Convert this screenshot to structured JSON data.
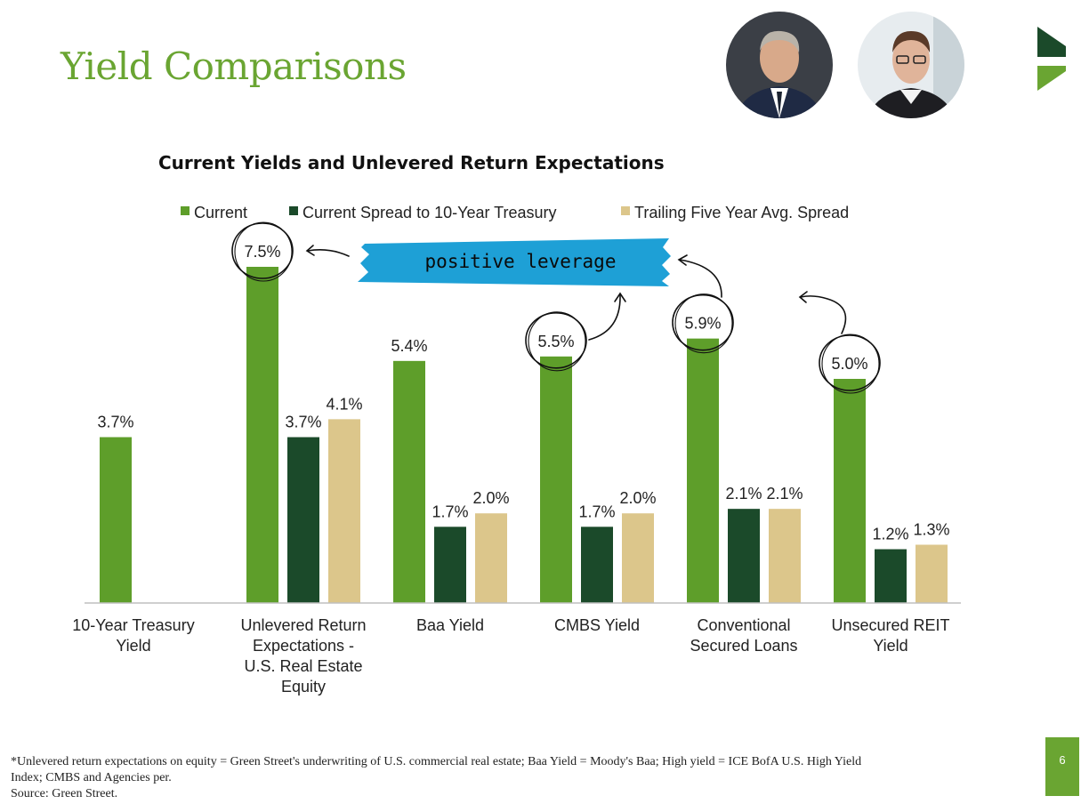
{
  "slide": {
    "title": "Yield Comparisons",
    "page_number": "6"
  },
  "colors": {
    "current": "#5e9e2a",
    "spread": "#1b4a2a",
    "avg_spread": "#dcc68b",
    "title_green": "#6aa532",
    "callout_blue": "#1ea0d6"
  },
  "annotations": {
    "callout_text": "positive leverage"
  },
  "chart_data": {
    "type": "bar",
    "title": "Current Yields and Unlevered Return Expectations",
    "categories": [
      [
        "10-Year Treasury",
        "Yield"
      ],
      [
        "Unlevered Return",
        "Expectations -",
        "U.S. Real Estate",
        "Equity"
      ],
      [
        "Baa Yield"
      ],
      [
        "CMBS Yield"
      ],
      [
        "Conventional",
        "Secured Loans"
      ],
      [
        "Unsecured REIT",
        "Yield"
      ]
    ],
    "series": [
      {
        "name": "Current",
        "color_key": "current",
        "values": [
          3.7,
          7.5,
          5.4,
          5.5,
          5.9,
          5.0
        ],
        "labels": [
          "3.7%",
          "7.5%",
          "5.4%",
          "5.5%",
          "5.9%",
          "5.0%"
        ]
      },
      {
        "name": "Current Spread to 10-Year Treasury",
        "color_key": "spread",
        "values": [
          null,
          3.7,
          1.7,
          1.7,
          2.1,
          1.2
        ],
        "labels": [
          null,
          "3.7%",
          "1.7%",
          "1.7%",
          "2.1%",
          "1.2%"
        ]
      },
      {
        "name": "Trailing Five Year Avg. Spread",
        "color_key": "avg_spread",
        "values": [
          null,
          4.1,
          2.0,
          2.0,
          2.1,
          1.3
        ],
        "labels": [
          null,
          "4.1%",
          "2.0%",
          "2.0%",
          "2.1%",
          "1.3%"
        ]
      }
    ],
    "circled_labels": [
      "7.5%",
      "5.5%",
      "5.9%",
      "5.0%"
    ],
    "ylim": [
      0,
      7.5
    ],
    "legend": "top",
    "grid": false
  },
  "footnote": {
    "line1": "*Unlevered return expectations on equity = Green Street's underwriting of U.S. commercial real estate; Baa Yield = Moody's Baa; High yield = ICE BofA U.S. High Yield",
    "line2": "Index; CMBS and Agencies per.",
    "line3": "Source: Green Street."
  }
}
